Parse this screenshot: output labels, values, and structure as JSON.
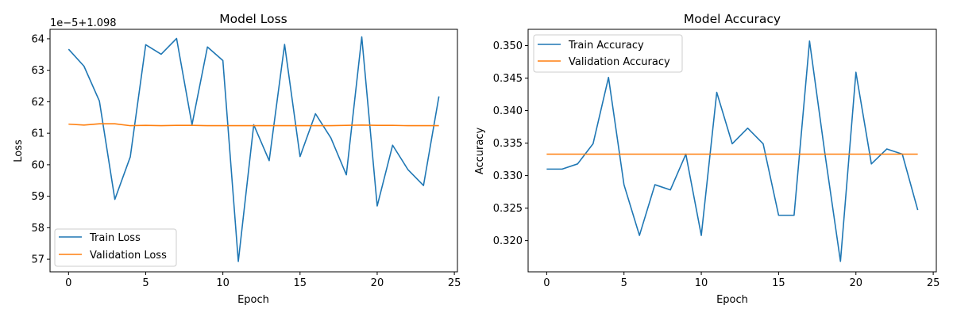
{
  "chart_data": [
    {
      "type": "line",
      "title": "Model Loss",
      "xlabel": "Epoch",
      "ylabel": "Loss",
      "y_offset_text": "1e−5+1.098",
      "y_scale_note": "tick labels are in units of 1e-5, offset by 1.098",
      "x": [
        0,
        1,
        2,
        3,
        4,
        5,
        6,
        7,
        8,
        9,
        10,
        11,
        12,
        13,
        14,
        15,
        16,
        17,
        18,
        19,
        20,
        21,
        22,
        23,
        24
      ],
      "xlim": [
        -1.2,
        25.2
      ],
      "xticks": [
        0,
        5,
        10,
        15,
        20,
        25
      ],
      "xtick_labels": [
        "0",
        "5",
        "10",
        "15",
        "20",
        "25"
      ],
      "ylim": [
        56.6,
        64.3
      ],
      "yticks": [
        57,
        58,
        59,
        60,
        61,
        62,
        63,
        64
      ],
      "ytick_labels": [
        "57",
        "58",
        "59",
        "60",
        "61",
        "62",
        "63",
        "64"
      ],
      "legend_position": "lower-left",
      "grid": false,
      "series": [
        {
          "name": "Train Loss",
          "color": "#1f77b4",
          "values": [
            63.67,
            63.13,
            62.02,
            58.9,
            60.25,
            63.81,
            63.51,
            64.01,
            61.27,
            63.74,
            63.31,
            56.93,
            61.27,
            60.13,
            63.82,
            60.26,
            61.62,
            60.85,
            59.68,
            64.06,
            58.69,
            60.62,
            59.84,
            59.34,
            62.17
          ]
        },
        {
          "name": "Validation Loss",
          "color": "#ff7f0e",
          "values": [
            61.29,
            61.26,
            61.3,
            61.3,
            61.24,
            61.25,
            61.24,
            61.25,
            61.25,
            61.24,
            61.24,
            61.24,
            61.24,
            61.24,
            61.24,
            61.24,
            61.24,
            61.24,
            61.25,
            61.26,
            61.25,
            61.25,
            61.24,
            61.24,
            61.24
          ]
        }
      ]
    },
    {
      "type": "line",
      "title": "Model Accuracy",
      "xlabel": "Epoch",
      "ylabel": "Accuracy",
      "x": [
        0,
        1,
        2,
        3,
        4,
        5,
        6,
        7,
        8,
        9,
        10,
        11,
        12,
        13,
        14,
        15,
        16,
        17,
        18,
        19,
        20,
        21,
        22,
        23,
        24
      ],
      "xlim": [
        -1.2,
        25.2
      ],
      "xticks": [
        0,
        5,
        10,
        15,
        20,
        25
      ],
      "xtick_labels": [
        "0",
        "5",
        "10",
        "15",
        "20",
        "25"
      ],
      "ylim": [
        0.3152,
        0.3525
      ],
      "yticks": [
        0.32,
        0.325,
        0.33,
        0.335,
        0.34,
        0.345,
        0.35
      ],
      "ytick_labels": [
        "0.320",
        "0.325",
        "0.330",
        "0.335",
        "0.340",
        "0.345",
        "0.350"
      ],
      "legend_position": "upper-left",
      "grid": false,
      "series": [
        {
          "name": "Train Accuracy",
          "color": "#1f77b4",
          "values": [
            0.331,
            0.331,
            0.3318,
            0.3349,
            0.3451,
            0.3286,
            0.3208,
            0.3286,
            0.3278,
            0.3333,
            0.3208,
            0.3428,
            0.3349,
            0.3373,
            0.3349,
            0.3239,
            0.3239,
            0.3507,
            0.3333,
            0.3168,
            0.3459,
            0.3318,
            0.3341,
            0.3333,
            0.3247
          ]
        },
        {
          "name": "Validation Accuracy",
          "color": "#ff7f0e",
          "values": [
            0.3333,
            0.3333,
            0.3333,
            0.3333,
            0.3333,
            0.3333,
            0.3333,
            0.3333,
            0.3333,
            0.3333,
            0.3333,
            0.3333,
            0.3333,
            0.3333,
            0.3333,
            0.3333,
            0.3333,
            0.3333,
            0.3333,
            0.3333,
            0.3333,
            0.3333,
            0.3333,
            0.3333,
            0.3333
          ]
        }
      ]
    }
  ]
}
